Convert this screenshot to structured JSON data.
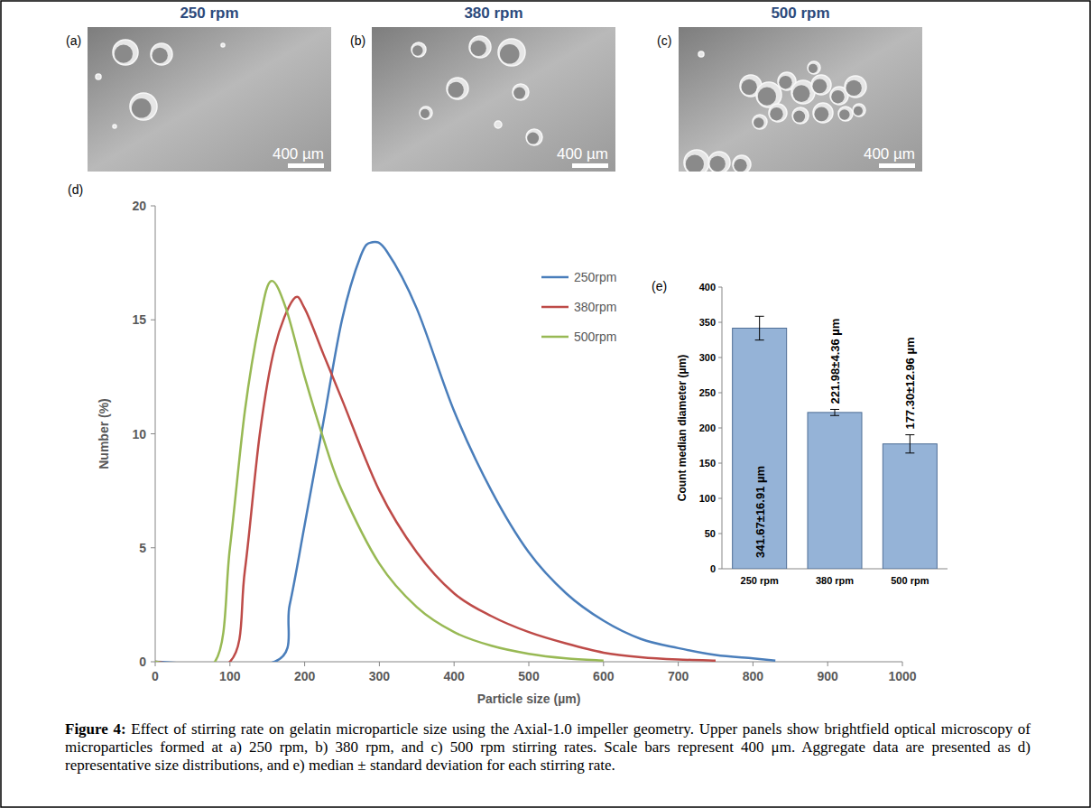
{
  "panels": [
    {
      "letter": "(a)",
      "title": "250 rpm",
      "scale_bar": "400 µm"
    },
    {
      "letter": "(b)",
      "title": "380 rpm",
      "scale_bar": "400 µm"
    },
    {
      "letter": "(c)",
      "title": "500 rpm",
      "scale_bar": "400 µm"
    }
  ],
  "chart_data": [
    {
      "type": "line",
      "label": "(d)",
      "xlabel": "Particle size (µm)",
      "ylabel": "Number (%)",
      "xlim": [
        0,
        1000
      ],
      "xticks": [
        0,
        100,
        200,
        300,
        400,
        500,
        600,
        700,
        800,
        900,
        1000
      ],
      "ylim": [
        0,
        20
      ],
      "yticks": [
        0,
        5,
        10,
        15,
        20
      ],
      "grid": false,
      "legend": "top-right",
      "series": [
        {
          "name": "250rpm",
          "color": "#4a7ebb",
          "x": [
            0,
            160,
            180,
            200,
            225,
            250,
            275,
            290,
            310,
            350,
            400,
            450,
            500,
            550,
            600,
            650,
            700,
            750,
            800,
            830
          ],
          "values": [
            0,
            0,
            2.5,
            6,
            10.5,
            15,
            17.8,
            18.4,
            18,
            15.5,
            11,
            7.5,
            4.8,
            3,
            1.8,
            1,
            0.6,
            0.3,
            0.15,
            0.05
          ]
        },
        {
          "name": "380rpm",
          "color": "#be4b48",
          "x": [
            0,
            100,
            120,
            140,
            160,
            185,
            200,
            225,
            250,
            300,
            350,
            400,
            450,
            500,
            550,
            600,
            650,
            700,
            750
          ],
          "values": [
            0,
            0,
            4,
            10,
            13.8,
            15.9,
            15.5,
            13.5,
            11.5,
            7.5,
            4.8,
            3,
            2,
            1.3,
            0.8,
            0.4,
            0.2,
            0.1,
            0.05
          ]
        },
        {
          "name": "500rpm",
          "color": "#98b954",
          "x": [
            0,
            80,
            100,
            120,
            140,
            155,
            175,
            200,
            225,
            250,
            300,
            350,
            400,
            450,
            500,
            550,
            600
          ],
          "values": [
            0,
            0,
            5,
            11,
            15,
            16.7,
            15.5,
            12.5,
            9.8,
            7.5,
            4.3,
            2.4,
            1.3,
            0.7,
            0.35,
            0.15,
            0.05
          ]
        }
      ]
    },
    {
      "type": "bar",
      "label": "(e)",
      "ylabel": "Count median diameter (µm)",
      "categories": [
        "250 rpm",
        "380 rpm",
        "500 rpm"
      ],
      "values": [
        341.67,
        221.98,
        177.3
      ],
      "errors": [
        16.91,
        4.36,
        12.96
      ],
      "value_labels": [
        "341.67±16.91 µm",
        "221.98±4.36 µm",
        "177.30±12.96 µm"
      ],
      "data_labels": true,
      "color": "#95b3d7",
      "ylim": [
        0,
        400
      ],
      "yticks": [
        0,
        50,
        100,
        150,
        200,
        250,
        300,
        350,
        400
      ]
    }
  ],
  "caption": {
    "label": "Figure 4:",
    "text": "Effect of stirring rate on gelatin microparticle size using the Axial-1.0 impeller geometry. Upper panels show brightfield optical microscopy of microparticles formed at a) 250 rpm, b) 380 rpm, and c) 500 rpm stirring rates. Scale bars represent 400 μm. Aggregate data are presented as d) representative size distributions, and e) median ± standard deviation for each stirring rate."
  }
}
